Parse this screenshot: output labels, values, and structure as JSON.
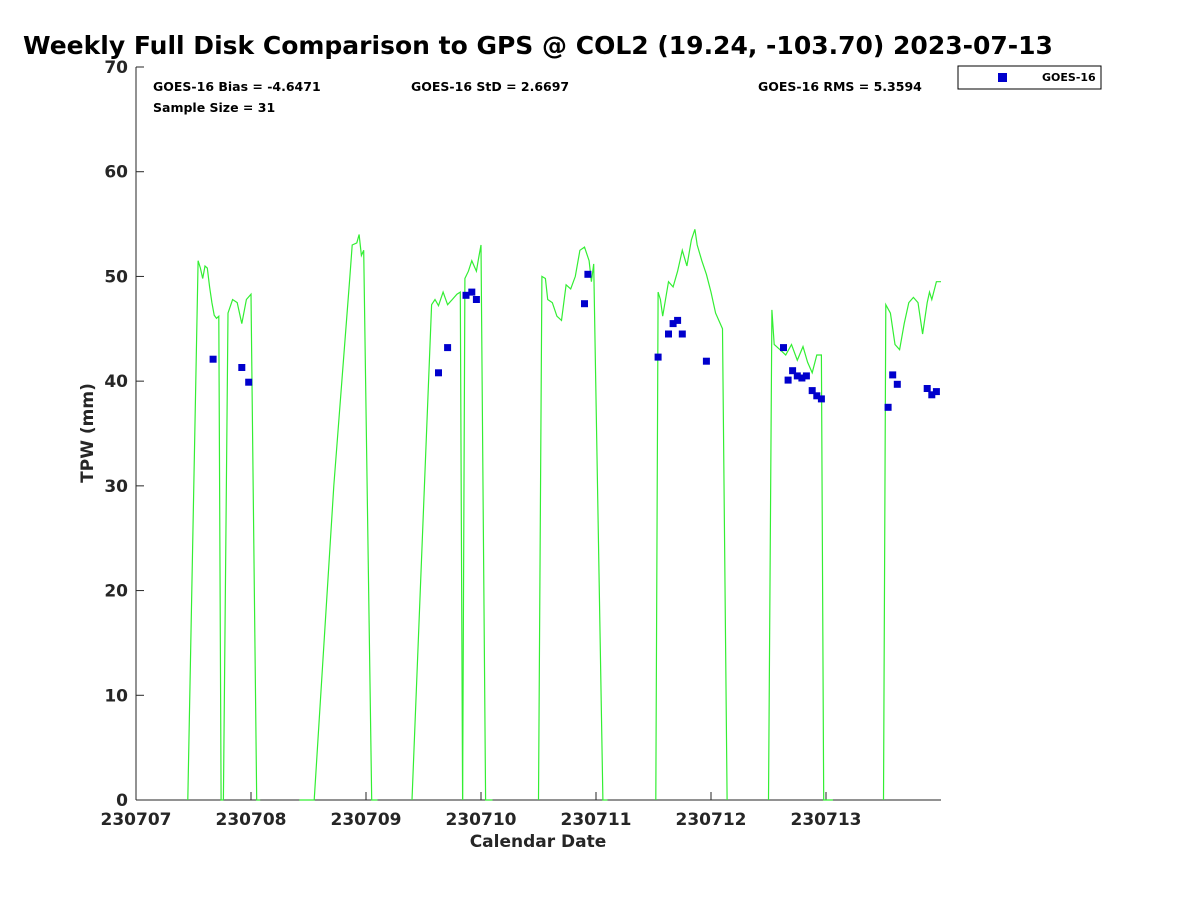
{
  "chart_data": {
    "type": "scatter",
    "title": "Weekly Full Disk Comparison to GPS @ COL2 (19.24, -103.70) 2023-07-13",
    "xlabel": "Calendar Date",
    "ylabel": "TPW (mm)",
    "xlim": [
      230707,
      230714.0
    ],
    "ylim": [
      0,
      70
    ],
    "x_ticks": [
      230707,
      230708,
      230709,
      230710,
      230711,
      230712,
      230713
    ],
    "x_tick_labels": [
      "230707",
      "230708",
      "230709",
      "230710",
      "230711",
      "230712",
      "230713"
    ],
    "y_ticks": [
      0,
      10,
      20,
      30,
      40,
      50,
      60,
      70
    ],
    "y_tick_labels": [
      "0",
      "10",
      "20",
      "30",
      "40",
      "50",
      "60",
      "70"
    ],
    "grid": false,
    "legend_position": "top-right (outside axes)",
    "stats": {
      "bias": "GOES-16 Bias = -4.6471",
      "std": "GOES-16 StD = 2.6697",
      "rms": "GOES-16 RMS = 5.3594",
      "sample": "Sample Size = 31"
    },
    "series": [
      {
        "name": "GOES-16",
        "kind": "scatter",
        "marker": "square",
        "color": "#0000cc",
        "x": [
          230707.67,
          230707.92,
          230707.98,
          230709.63,
          230709.71,
          230709.87,
          230709.92,
          230709.96,
          230710.9,
          230710.93,
          230711.54,
          230711.63,
          230711.67,
          230711.71,
          230711.75,
          230711.96,
          230712.63,
          230712.67,
          230712.71,
          230712.75,
          230712.79,
          230712.83,
          230712.88,
          230712.92,
          230712.96,
          230713.54,
          230713.58,
          230713.62,
          230713.88,
          230713.92,
          230713.96
        ],
        "y": [
          42.1,
          41.3,
          39.9,
          40.8,
          43.2,
          48.2,
          48.5,
          47.8,
          47.4,
          50.2,
          42.3,
          44.5,
          45.5,
          45.8,
          44.5,
          41.9,
          43.2,
          40.1,
          41.0,
          40.5,
          40.3,
          40.5,
          39.1,
          38.6,
          38.3,
          37.5,
          40.6,
          39.7,
          39.3,
          38.7,
          39.0
        ]
      },
      {
        "kind": "line",
        "color": "#33ee33",
        "segments": [
          {
            "x": [
              230707.45,
              230707.54,
              230707.56,
              230707.58,
              230707.6,
              230707.62,
              230707.64,
              230707.66,
              230707.68,
              230707.7,
              230707.72,
              230707.74,
              230707.76
            ],
            "y": [
              0,
              51.5,
              50.8,
              49.8,
              51.0,
              50.8,
              49.0,
              47.5,
              46.3,
              46.0,
              46.2,
              0,
              0
            ]
          },
          {
            "x": [
              230707.76,
              230707.8,
              230707.84,
              230707.88,
              230707.92,
              230707.96,
              230708.0,
              230708.05,
              230708.08
            ],
            "y": [
              0,
              46.5,
              47.8,
              47.5,
              45.5,
              47.8,
              48.3,
              0,
              0
            ]
          },
          {
            "x": [
              230708.42,
              230708.55,
              230708.72,
              230708.86,
              230708.88,
              230708.92,
              230708.94,
              230708.96,
              230708.98,
              230709.05,
              230709.1
            ],
            "y": [
              0,
              0,
              30.0,
              50.0,
              53.0,
              53.2,
              54.0,
              52.0,
              52.5,
              0,
              0
            ]
          },
          {
            "x": [
              230709.4,
              230709.57,
              230709.6,
              230709.63,
              230709.67,
              230709.71,
              230709.75,
              230709.79,
              230709.82,
              230709.84
            ],
            "y": [
              0,
              47.3,
              47.8,
              47.2,
              48.5,
              47.3,
              47.8,
              48.3,
              48.5,
              0
            ]
          },
          {
            "x": [
              230709.84,
              230709.86,
              230709.89,
              230709.92,
              230709.96,
              230709.98,
              230710.0,
              230710.04,
              230710.1
            ],
            "y": [
              0,
              49.8,
              50.5,
              51.5,
              50.5,
              51.8,
              53.0,
              0,
              0
            ]
          },
          {
            "x": [
              230710.5,
              230710.53,
              230710.56,
              230710.58,
              230710.62,
              230710.66,
              230710.7,
              230710.74,
              230710.78,
              230710.82,
              230710.86,
              230710.9,
              230710.94,
              230710.96,
              230710.98,
              230711.06,
              230711.1
            ],
            "y": [
              0,
              50.0,
              49.8,
              47.8,
              47.5,
              46.2,
              45.8,
              49.2,
              48.8,
              50.0,
              52.5,
              52.8,
              51.5,
              49.5,
              51.2,
              0,
              0
            ]
          },
          {
            "x": [
              230711.52,
              230711.54,
              230711.56,
              230711.58,
              230711.63,
              230711.67,
              230711.71,
              230711.75,
              230711.79,
              230711.83,
              230711.86,
              230711.88,
              230711.92,
              230711.96,
              230712.0,
              230712.04,
              230712.1,
              230712.14
            ],
            "y": [
              0,
              48.5,
              47.8,
              46.2,
              49.5,
              49.0,
              50.5,
              52.5,
              51.0,
              53.5,
              54.5,
              53.0,
              51.5,
              50.2,
              48.5,
              46.5,
              45.0,
              0
            ]
          },
          {
            "x": [
              230712.5,
              230712.53,
              230712.55,
              230712.6,
              230712.65,
              230712.7,
              230712.75,
              230712.8,
              230712.84,
              230712.88,
              230712.92,
              230712.96,
              230712.98,
              230713.06
            ],
            "y": [
              0,
              46.8,
              43.5,
              43.0,
              42.5,
              43.5,
              42.0,
              43.3,
              41.8,
              40.8,
              42.5,
              42.5,
              0,
              0
            ]
          },
          {
            "x": [
              230713.5,
              230713.52,
              230713.56,
              230713.6,
              230713.64,
              230713.68,
              230713.72,
              230713.76,
              230713.8,
              230713.84,
              230713.88,
              230713.9,
              230713.92,
              230713.96,
              230714.0
            ],
            "y": [
              0,
              47.3,
              46.5,
              43.5,
              43.0,
              45.5,
              47.5,
              48.0,
              47.5,
              44.5,
              47.5,
              48.5,
              47.8,
              49.5,
              49.5
            ]
          }
        ]
      }
    ]
  },
  "legend": {
    "label": "GOES-16",
    "marker_color": "#0000cc"
  }
}
